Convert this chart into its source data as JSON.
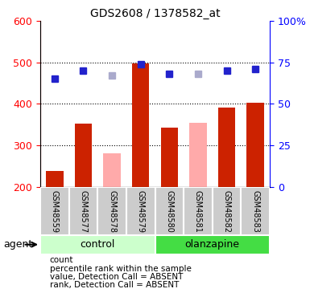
{
  "title": "GDS2608 / 1378582_at",
  "samples": [
    "GSM48559",
    "GSM48577",
    "GSM48578",
    "GSM48579",
    "GSM48580",
    "GSM48581",
    "GSM48582",
    "GSM48583"
  ],
  "bar_values": [
    238,
    352,
    280,
    497,
    342,
    355,
    392,
    403
  ],
  "bar_absent": [
    false,
    false,
    true,
    false,
    false,
    true,
    false,
    false
  ],
  "rank_pct": [
    65,
    70,
    67,
    74,
    68,
    68,
    70,
    71
  ],
  "rank_absent": [
    false,
    false,
    true,
    false,
    false,
    true,
    false,
    false
  ],
  "groups": [
    {
      "label": "control",
      "start": 0,
      "end": 4,
      "color": "#ccffcc"
    },
    {
      "label": "olanzapine",
      "start": 4,
      "end": 8,
      "color": "#44dd44"
    }
  ],
  "ylim_left": [
    200,
    600
  ],
  "ylim_right": [
    0,
    100
  ],
  "yticks_left": [
    200,
    300,
    400,
    500,
    600
  ],
  "yticks_right": [
    0,
    25,
    50,
    75,
    100
  ],
  "yticklabels_right": [
    "0",
    "25",
    "50",
    "75",
    "100%"
  ],
  "bar_color_present": "#cc2200",
  "bar_color_absent": "#ffaaaa",
  "rank_color_present": "#2222cc",
  "rank_color_absent": "#aaaacc",
  "legend_items": [
    {
      "label": "count",
      "color": "#cc2200"
    },
    {
      "label": "percentile rank within the sample",
      "color": "#2222cc"
    },
    {
      "label": "value, Detection Call = ABSENT",
      "color": "#ffaaaa"
    },
    {
      "label": "rank, Detection Call = ABSENT",
      "color": "#aaaacc"
    }
  ]
}
